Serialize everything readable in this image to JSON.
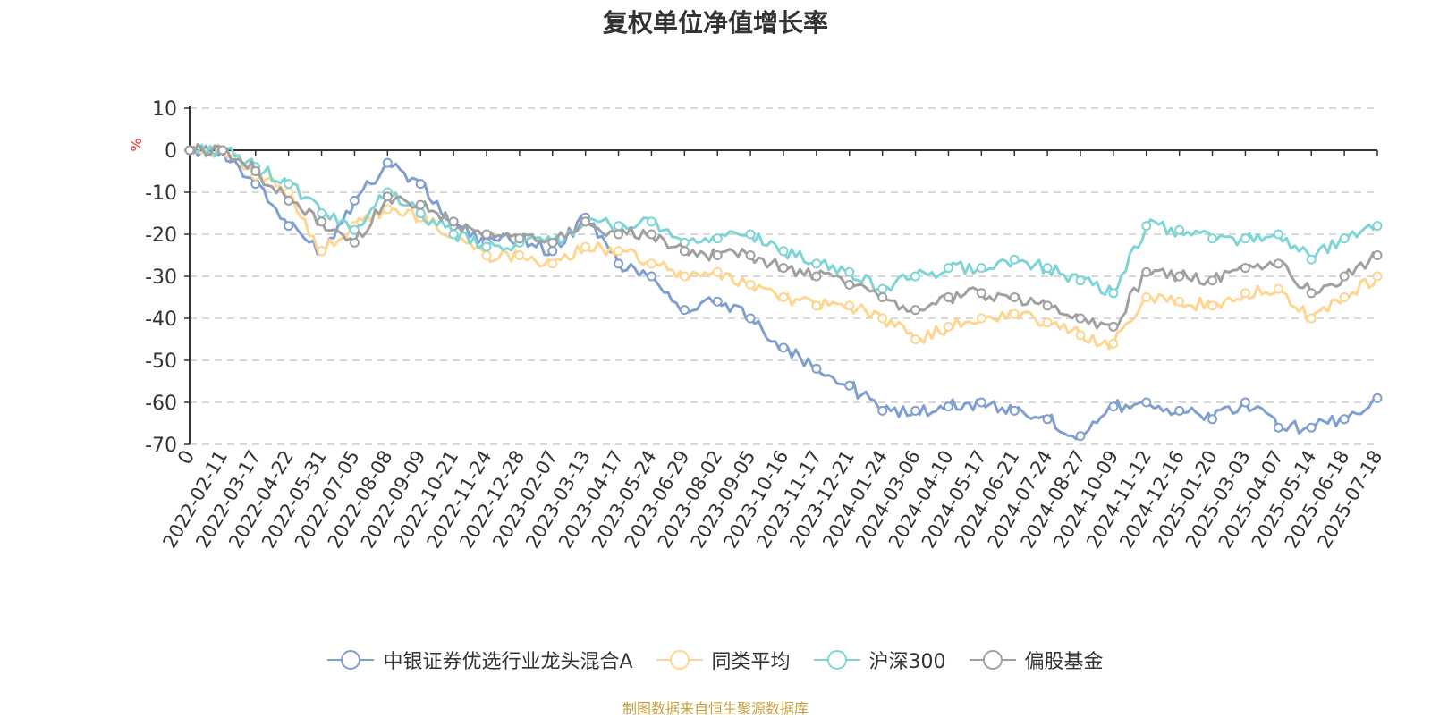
{
  "chart_data": {
    "type": "line",
    "title": "复权单位净值增长率",
    "ylabel": "%",
    "ylim": [
      -70,
      10
    ],
    "yticks": [
      10,
      0,
      -10,
      -20,
      -30,
      -40,
      -50,
      -60,
      -70
    ],
    "grid": "dashed horizontal",
    "legend_position": "bottom",
    "x_origin_label": "0",
    "categories": [
      "2022-02-11",
      "2022-03-17",
      "2022-04-22",
      "2022-05-31",
      "2022-07-05",
      "2022-08-08",
      "2022-09-09",
      "2022-10-21",
      "2022-11-24",
      "2022-12-28",
      "2023-02-07",
      "2023-03-13",
      "2023-04-17",
      "2023-05-24",
      "2023-06-29",
      "2023-08-02",
      "2023-09-05",
      "2023-10-16",
      "2023-11-17",
      "2023-12-21",
      "2024-01-24",
      "2024-03-06",
      "2024-04-10",
      "2024-05-17",
      "2024-06-21",
      "2024-07-24",
      "2024-08-27",
      "2024-10-09",
      "2024-11-12",
      "2024-12-16",
      "2025-01-20",
      "2025-03-03",
      "2025-04-07",
      "2025-05-14",
      "2025-06-18",
      "2025-07-18"
    ],
    "series": [
      {
        "name": "中银证券优选行业龙头混合A",
        "color": "#7f9fd1",
        "values": [
          0,
          -8,
          -18,
          -24,
          -12,
          -3,
          -8,
          -18,
          -22,
          -21,
          -24,
          -16,
          -27,
          -30,
          -38,
          -36,
          -40,
          -47,
          -52,
          -56,
          -62,
          -62,
          -61,
          -60,
          -62,
          -64,
          -68,
          -61,
          -60,
          -62,
          -64,
          -60,
          -66,
          -66,
          -64,
          -59
        ]
      },
      {
        "name": "同类平均",
        "color": "#ffd590",
        "values": [
          0,
          -6,
          -10,
          -24,
          -18,
          -14,
          -16,
          -20,
          -25,
          -25,
          -27,
          -23,
          -24,
          -27,
          -30,
          -29,
          -32,
          -35,
          -37,
          -37,
          -40,
          -45,
          -42,
          -40,
          -39,
          -41,
          -44,
          -46,
          -35,
          -36,
          -37,
          -34,
          -33,
          -40,
          -35,
          -30
        ]
      },
      {
        "name": "沪深300",
        "color": "#7fd5d6",
        "values": [
          0,
          -4,
          -8,
          -15,
          -19,
          -10,
          -15,
          -20,
          -23,
          -22,
          -22,
          -17,
          -18,
          -17,
          -22,
          -21,
          -20,
          -24,
          -27,
          -29,
          -33,
          -30,
          -28,
          -28,
          -26,
          -28,
          -31,
          -34,
          -18,
          -19,
          -21,
          -21,
          -20,
          -26,
          -21,
          -18
        ]
      },
      {
        "name": "偏股基金",
        "color": "#a0a0a0",
        "values": [
          0,
          -5,
          -12,
          -17,
          -22,
          -11,
          -13,
          -17,
          -20,
          -21,
          -22,
          -17,
          -20,
          -20,
          -24,
          -25,
          -25,
          -28,
          -30,
          -32,
          -35,
          -38,
          -35,
          -34,
          -35,
          -37,
          -40,
          -42,
          -29,
          -30,
          -31,
          -28,
          -27,
          -34,
          -30,
          -25
        ]
      }
    ]
  },
  "source_note": "制图数据来自恒生聚源数据库"
}
